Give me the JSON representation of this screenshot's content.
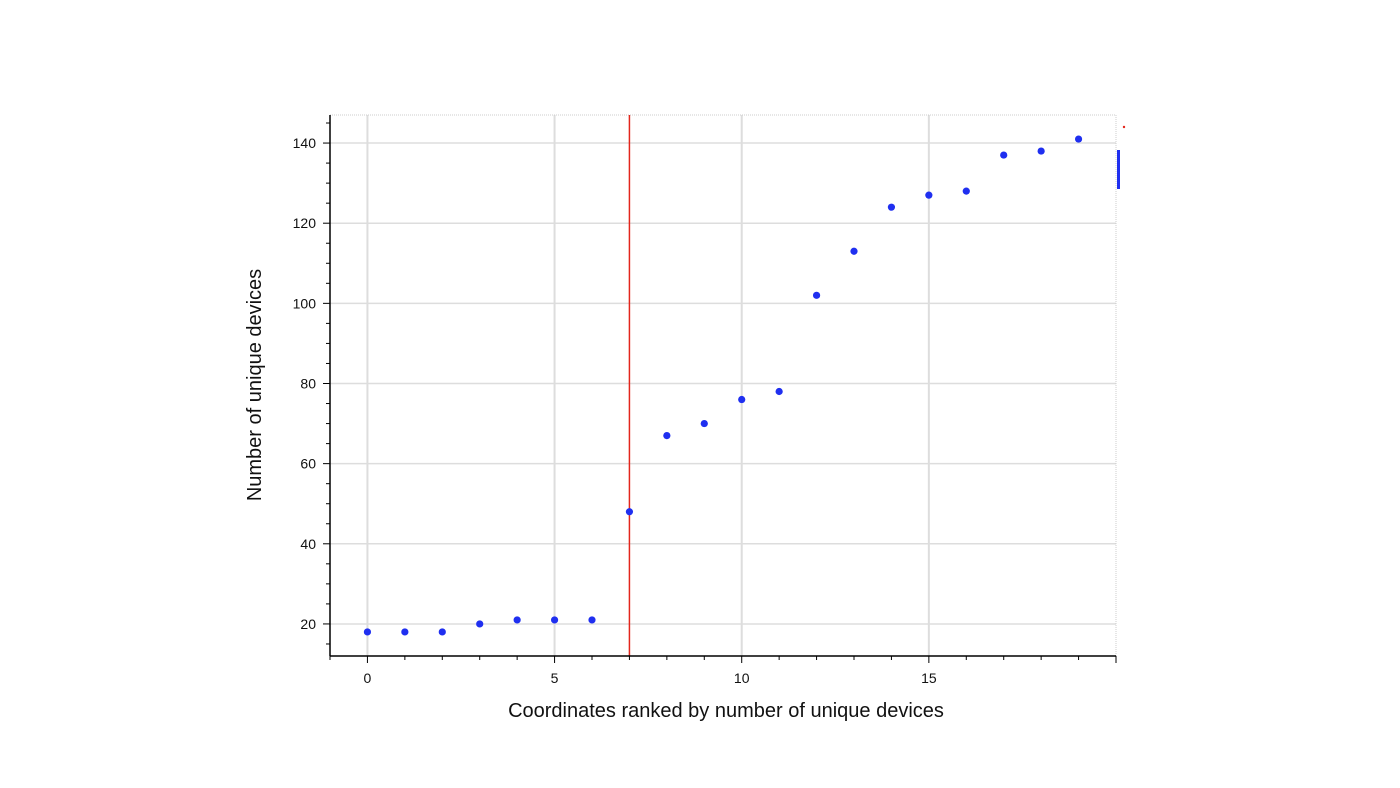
{
  "chart_data": {
    "type": "scatter",
    "title": "",
    "xlabel": "Coordinates ranked by number of unique devices",
    "ylabel": "Number of unique devices",
    "xlim": [
      -1,
      20
    ],
    "ylim": [
      12,
      147
    ],
    "xticks": [
      0,
      5,
      10,
      15
    ],
    "yticks": [
      20,
      40,
      60,
      80,
      100,
      120,
      140
    ],
    "grid": true,
    "series": [
      {
        "color": "#1f2ff0",
        "points": [
          {
            "x": 0,
            "y": 18
          },
          {
            "x": 1,
            "y": 18
          },
          {
            "x": 2,
            "y": 18
          },
          {
            "x": 3,
            "y": 20
          },
          {
            "x": 4,
            "y": 21
          },
          {
            "x": 5,
            "y": 21
          },
          {
            "x": 6,
            "y": 21
          },
          {
            "x": 7,
            "y": 48
          },
          {
            "x": 8,
            "y": 67
          },
          {
            "x": 9,
            "y": 70
          },
          {
            "x": 10,
            "y": 76
          },
          {
            "x": 11,
            "y": 78
          },
          {
            "x": 12,
            "y": 102
          },
          {
            "x": 13,
            "y": 113
          },
          {
            "x": 14,
            "y": 124
          },
          {
            "x": 15,
            "y": 127
          },
          {
            "x": 16,
            "y": 128
          },
          {
            "x": 17,
            "y": 137
          },
          {
            "x": 18,
            "y": 138
          },
          {
            "x": 19,
            "y": 141
          }
        ]
      }
    ],
    "vertical_line": {
      "x": 7,
      "color": "#e3261c"
    },
    "colors": {
      "grid": "#dddddd",
      "axis": "#000000",
      "legend_fragment": "#1f2ff0"
    }
  }
}
